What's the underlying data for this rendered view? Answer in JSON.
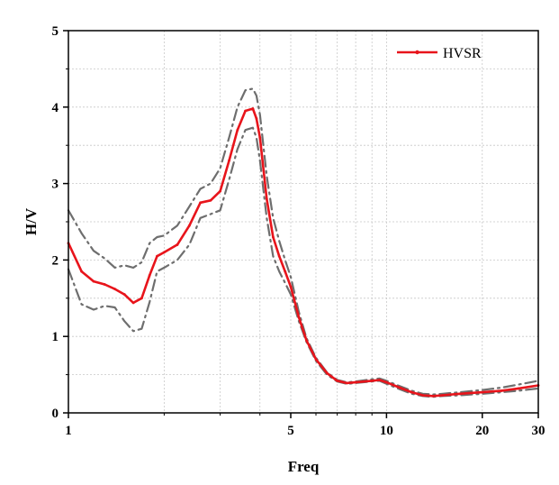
{
  "chart_data": {
    "type": "line",
    "xlabel": "Freq",
    "ylabel": "H/V",
    "xscale": "log",
    "xlim": [
      1,
      30
    ],
    "ylim": [
      0,
      5
    ],
    "xticks": [
      1,
      5,
      10,
      20,
      30
    ],
    "xtick_labels": [
      "1",
      "5",
      "10",
      "20",
      "30"
    ],
    "yticks": [
      0,
      1,
      2,
      3,
      4,
      5
    ],
    "ytick_labels": [
      "0",
      "1",
      "2",
      "3",
      "4",
      "5"
    ],
    "grid": true,
    "legend": {
      "position": "top-right",
      "entries": [
        "HVSR"
      ]
    },
    "series": [
      {
        "name": "HVSR",
        "color": "#e8141b",
        "style": "solid-with-markers",
        "x": [
          1.0,
          1.1,
          1.2,
          1.3,
          1.4,
          1.5,
          1.6,
          1.7,
          1.8,
          1.9,
          2.0,
          2.2,
          2.4,
          2.6,
          2.8,
          3.0,
          3.2,
          3.4,
          3.6,
          3.8,
          3.9,
          4.0,
          4.2,
          4.4,
          4.6,
          4.8,
          5.0,
          5.3,
          5.6,
          6.0,
          6.5,
          7.0,
          7.5,
          8.0,
          9.0,
          9.5,
          10.0,
          11.0,
          12.0,
          13.0,
          14.0,
          15.0,
          17.0,
          20.0,
          23.0,
          26.0,
          30.0
        ],
        "y": [
          2.22,
          1.85,
          1.72,
          1.68,
          1.62,
          1.55,
          1.44,
          1.5,
          1.8,
          2.05,
          2.1,
          2.2,
          2.45,
          2.75,
          2.78,
          2.9,
          3.3,
          3.7,
          3.95,
          3.98,
          3.85,
          3.6,
          2.8,
          2.3,
          2.05,
          1.85,
          1.65,
          1.25,
          0.95,
          0.7,
          0.52,
          0.42,
          0.39,
          0.4,
          0.42,
          0.43,
          0.4,
          0.33,
          0.27,
          0.23,
          0.22,
          0.23,
          0.25,
          0.27,
          0.29,
          0.32,
          0.36
        ]
      },
      {
        "name": "",
        "color": "#6e6e6e",
        "style": "dash-dot",
        "x": [
          1.0,
          1.1,
          1.2,
          1.3,
          1.4,
          1.5,
          1.6,
          1.7,
          1.8,
          1.9,
          2.0,
          2.2,
          2.4,
          2.6,
          2.8,
          3.0,
          3.2,
          3.4,
          3.6,
          3.8,
          3.9,
          4.0,
          4.2,
          4.4,
          4.6,
          4.8,
          5.0,
          5.3,
          5.6,
          6.0,
          6.5,
          7.0,
          7.5,
          8.0,
          9.0,
          9.5,
          10.0,
          11.0,
          12.0,
          13.0,
          14.0,
          15.0,
          17.0,
          20.0,
          23.0,
          26.0,
          30.0
        ],
        "y": [
          2.65,
          2.35,
          2.12,
          2.02,
          1.9,
          1.93,
          1.9,
          1.97,
          2.22,
          2.3,
          2.32,
          2.45,
          2.7,
          2.93,
          3.0,
          3.2,
          3.6,
          4.0,
          4.22,
          4.24,
          4.15,
          3.9,
          3.1,
          2.55,
          2.25,
          2.0,
          1.78,
          1.32,
          0.98,
          0.72,
          0.53,
          0.43,
          0.4,
          0.41,
          0.44,
          0.45,
          0.42,
          0.35,
          0.29,
          0.25,
          0.24,
          0.25,
          0.27,
          0.3,
          0.33,
          0.37,
          0.42
        ]
      },
      {
        "name": "",
        "color": "#6e6e6e",
        "style": "dash-dot",
        "x": [
          1.0,
          1.1,
          1.2,
          1.3,
          1.4,
          1.5,
          1.6,
          1.7,
          1.8,
          1.9,
          2.0,
          2.2,
          2.4,
          2.6,
          2.8,
          3.0,
          3.2,
          3.4,
          3.6,
          3.8,
          3.9,
          4.0,
          4.2,
          4.4,
          4.6,
          4.8,
          5.0,
          5.3,
          5.6,
          6.0,
          6.5,
          7.0,
          7.5,
          8.0,
          9.0,
          9.5,
          10.0,
          11.0,
          12.0,
          13.0,
          14.0,
          15.0,
          17.0,
          20.0,
          23.0,
          26.0,
          30.0
        ],
        "y": [
          1.88,
          1.42,
          1.35,
          1.4,
          1.38,
          1.2,
          1.07,
          1.1,
          1.45,
          1.85,
          1.9,
          2.0,
          2.2,
          2.55,
          2.6,
          2.65,
          3.05,
          3.45,
          3.7,
          3.73,
          3.6,
          3.3,
          2.55,
          2.05,
          1.85,
          1.7,
          1.55,
          1.2,
          0.93,
          0.68,
          0.5,
          0.41,
          0.38,
          0.39,
          0.41,
          0.42,
          0.38,
          0.31,
          0.25,
          0.22,
          0.21,
          0.22,
          0.23,
          0.25,
          0.27,
          0.29,
          0.32
        ]
      }
    ]
  }
}
